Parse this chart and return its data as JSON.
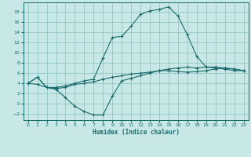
{
  "xlabel": "Humidex (Indice chaleur)",
  "bg_color": "#c8e8e8",
  "grid_color": "#88c0c0",
  "line_color": "#1a6b6b",
  "xlim": [
    -0.5,
    23.5
  ],
  "ylim": [
    -3.2,
    19.8
  ],
  "xticks": [
    0,
    1,
    2,
    3,
    4,
    5,
    6,
    7,
    8,
    9,
    10,
    11,
    12,
    13,
    14,
    15,
    16,
    17,
    18,
    19,
    20,
    21,
    22,
    23
  ],
  "yticks": [
    -2,
    0,
    2,
    4,
    6,
    8,
    10,
    12,
    14,
    16,
    18
  ],
  "line1_x": [
    0,
    1,
    2,
    3,
    4,
    5,
    6,
    7,
    8,
    9,
    10,
    11,
    12,
    13,
    14,
    15,
    16,
    17,
    18,
    19,
    20,
    21,
    22,
    23
  ],
  "line1_y": [
    4.0,
    5.2,
    3.2,
    3.2,
    3.5,
    4.0,
    4.5,
    4.8,
    9.0,
    13.0,
    13.2,
    15.2,
    17.5,
    18.2,
    18.5,
    19.0,
    17.2,
    13.5,
    9.3,
    7.2,
    7.0,
    6.8,
    6.5,
    6.5
  ],
  "line2_x": [
    0,
    1,
    2,
    3,
    4,
    5,
    6,
    7,
    8,
    9,
    10,
    11,
    12,
    13,
    14,
    15,
    16,
    17,
    18,
    19,
    20,
    21,
    22,
    23
  ],
  "line2_y": [
    4.0,
    5.2,
    3.2,
    2.8,
    1.2,
    -0.5,
    -1.5,
    -2.2,
    -2.2,
    1.5,
    4.5,
    5.0,
    5.5,
    6.0,
    6.5,
    6.8,
    7.0,
    7.2,
    7.0,
    7.2,
    7.2,
    7.0,
    6.8,
    6.5
  ],
  "line3_x": [
    0,
    1,
    2,
    3,
    4,
    5,
    6,
    7,
    8,
    9,
    10,
    11,
    12,
    13,
    14,
    15,
    16,
    17,
    18,
    19,
    20,
    21,
    22,
    23
  ],
  "line3_y": [
    4.0,
    3.8,
    3.2,
    3.0,
    3.2,
    3.8,
    4.0,
    4.3,
    4.8,
    5.2,
    5.5,
    5.8,
    6.0,
    6.2,
    6.5,
    6.5,
    6.3,
    6.2,
    6.3,
    6.5,
    6.8,
    7.0,
    6.8,
    6.5
  ]
}
